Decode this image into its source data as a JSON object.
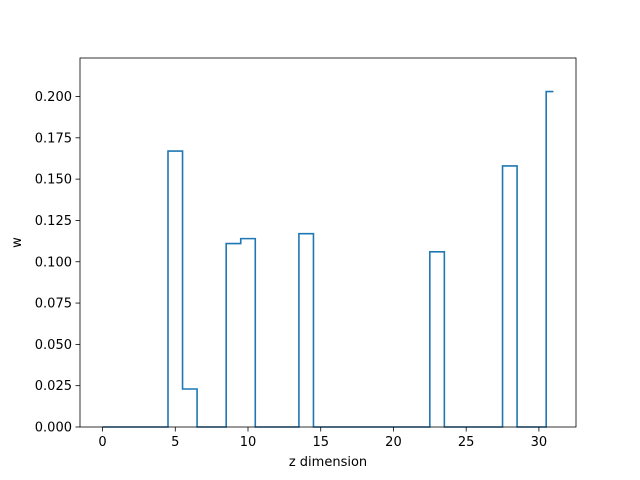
{
  "chart_data": {
    "type": "line",
    "drawstyle": "steps-mid",
    "xlabel": "z dimension",
    "ylabel": "w",
    "xlim": [
      -1.55,
      32.55
    ],
    "ylim": [
      0,
      0.2233
    ],
    "xticks": [
      0,
      5,
      10,
      15,
      20,
      25,
      30
    ],
    "xtick_labels": [
      "0",
      "5",
      "10",
      "15",
      "20",
      "25",
      "30"
    ],
    "yticks": [
      0.0,
      0.025,
      0.05,
      0.075,
      0.1,
      0.125,
      0.15,
      0.175,
      0.2
    ],
    "ytick_labels": [
      "0.000",
      "0.025",
      "0.050",
      "0.075",
      "0.100",
      "0.125",
      "0.150",
      "0.175",
      "0.200"
    ],
    "grid": false,
    "legend": "none",
    "series": [
      {
        "color": "#1f77b4",
        "x": [
          0,
          1,
          2,
          3,
          4,
          5,
          6,
          7,
          8,
          9,
          10,
          11,
          12,
          13,
          14,
          15,
          16,
          17,
          18,
          19,
          20,
          21,
          22,
          23,
          24,
          25,
          26,
          27,
          28,
          29,
          30,
          31
        ],
        "y": [
          0,
          0,
          0,
          0,
          0,
          0.167,
          0.023,
          0,
          0,
          0.111,
          0.114,
          0,
          0,
          0,
          0.117,
          0,
          0,
          0,
          0,
          0,
          0,
          0,
          0,
          0.106,
          0,
          0,
          0,
          0,
          0.158,
          0,
          0,
          0.203
        ]
      }
    ]
  }
}
